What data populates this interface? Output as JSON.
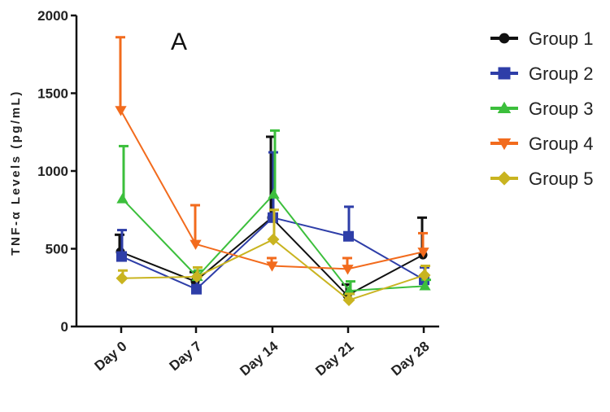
{
  "chart_data": {
    "type": "line",
    "panel_label": "A",
    "ylabel": "TNF-α Levels (pg/mL)",
    "xlabel": "",
    "ylim": [
      0,
      2000
    ],
    "yticks": [
      0,
      500,
      1000,
      1500,
      2000
    ],
    "categories": [
      "Day 0",
      "Day 7",
      "Day 14",
      "Day 21",
      "Day 28"
    ],
    "series": [
      {
        "name": "Group 1",
        "color": "#111111",
        "marker": "circle",
        "values": [
          480,
          290,
          700,
          200,
          460
        ],
        "errors": [
          110,
          60,
          520,
          70,
          240
        ]
      },
      {
        "name": "Group 2",
        "color": "#2e3ea8",
        "marker": "square",
        "values": [
          450,
          240,
          700,
          580,
          300
        ],
        "errors": [
          170,
          80,
          420,
          190,
          80
        ]
      },
      {
        "name": "Group 3",
        "color": "#3cbf3c",
        "marker": "triangle-up",
        "values": [
          820,
          320,
          850,
          230,
          260
        ],
        "errors": [
          340,
          40,
          410,
          60,
          40
        ]
      },
      {
        "name": "Group 4",
        "color": "#f26b1d",
        "marker": "triangle-down",
        "values": [
          1390,
          530,
          390,
          370,
          480
        ],
        "errors": [
          470,
          250,
          50,
          70,
          120
        ]
      },
      {
        "name": "Group 5",
        "color": "#c9b420",
        "marker": "diamond",
        "values": [
          310,
          320,
          560,
          170,
          330
        ],
        "errors": [
          50,
          60,
          190,
          40,
          60
        ]
      }
    ],
    "legend_position": "right"
  }
}
